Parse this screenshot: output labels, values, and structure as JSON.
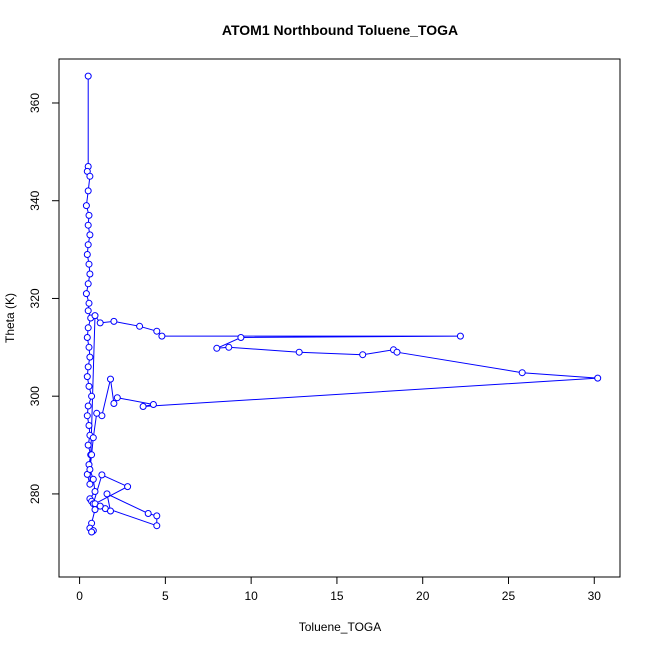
{
  "chart_data": {
    "type": "line",
    "title": "ATOM1 Northbound Toluene_TOGA",
    "xlabel": "Toluene_TOGA",
    "ylabel": "Theta (K)",
    "xlim": [
      -1.2,
      31.5
    ],
    "ylim": [
      263,
      369
    ],
    "xticks": [
      0,
      5,
      10,
      15,
      20,
      25,
      30
    ],
    "yticks": [
      280,
      300,
      320,
      340,
      360
    ],
    "series_color": "#0000ff",
    "marker": "open-circle",
    "grid": false,
    "legend": "none",
    "series": [
      {
        "x": [
          0.5,
          0.5,
          0.45,
          0.6,
          0.5,
          0.4,
          0.55,
          0.5,
          0.6,
          0.5,
          0.45,
          0.55,
          0.6,
          0.5,
          0.4,
          0.55,
          0.5,
          0.65,
          0.5,
          0.45,
          0.55,
          0.6,
          0.5,
          0.45,
          0.55,
          0.7,
          0.5,
          0.45,
          0.55,
          0.6,
          0.5,
          0.65,
          0.55,
          0.45,
          0.6,
          0.9,
          1.2,
          2.0,
          3.5,
          4.5,
          4.8,
          22.2,
          9.4,
          8.0,
          8.7,
          12.8,
          16.5,
          18.3,
          18.5,
          25.8,
          30.2,
          3.7,
          4.3,
          2.2,
          2.0,
          1.8,
          1.3,
          1.0,
          0.8,
          0.7,
          0.6,
          0.8,
          0.9,
          0.6,
          0.7,
          0.8,
          1.3,
          2.8,
          0.9,
          1.5,
          1.8,
          1.6,
          4.0,
          4.5,
          4.5,
          1.2,
          0.9,
          0.7,
          0.6,
          0.8,
          0.7
        ],
        "y": [
          365.5,
          347.0,
          346.0,
          345.0,
          342.0,
          339.0,
          337.0,
          335.0,
          333.0,
          331.0,
          329.0,
          327.0,
          325.0,
          323.0,
          321.0,
          319.0,
          317.5,
          316.0,
          314.0,
          312.0,
          310.0,
          308.0,
          306.0,
          304.0,
          302.0,
          300.0,
          298.0,
          296.0,
          294.0,
          292.0,
          290.0,
          288.0,
          286.0,
          284.0,
          282.0,
          316.5,
          315.0,
          315.3,
          314.3,
          313.3,
          312.3,
          312.3,
          312.0,
          309.8,
          310.0,
          309.0,
          308.5,
          309.5,
          309.0,
          304.8,
          303.7,
          297.9,
          298.3,
          299.7,
          298.5,
          303.5,
          296.0,
          296.5,
          291.5,
          288.0,
          285.0,
          283.0,
          280.5,
          279.0,
          278.5,
          278.0,
          283.9,
          281.5,
          278.0,
          277.0,
          276.5,
          280.0,
          276.0,
          275.5,
          273.5,
          277.5,
          276.8,
          274.0,
          273.0,
          272.5,
          272.2
        ]
      }
    ]
  }
}
